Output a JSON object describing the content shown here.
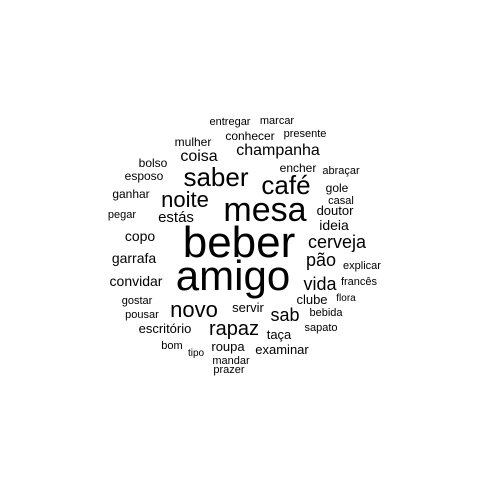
{
  "colors": {
    "background": "#ffffff",
    "text": "#000000"
  },
  "words": [
    {
      "text": "beber",
      "weight": 1.0
    },
    {
      "text": "amigo",
      "weight": 0.97
    },
    {
      "text": "mesa",
      "weight": 0.74
    },
    {
      "text": "saber",
      "weight": 0.6
    },
    {
      "text": "café",
      "weight": 0.6
    },
    {
      "text": "noite",
      "weight": 0.5
    },
    {
      "text": "novo",
      "weight": 0.5
    },
    {
      "text": "rapaz",
      "weight": 0.45
    },
    {
      "text": "vida",
      "weight": 0.4
    },
    {
      "text": "sab",
      "weight": 0.4
    },
    {
      "text": "cerveja",
      "weight": 0.36
    },
    {
      "text": "pão",
      "weight": 0.36
    },
    {
      "text": "champanha",
      "weight": 0.33
    },
    {
      "text": "coisa",
      "weight": 0.32
    },
    {
      "text": "estás",
      "weight": 0.32
    },
    {
      "text": "ideia",
      "weight": 0.3
    },
    {
      "text": "copo",
      "weight": 0.3
    },
    {
      "text": "garrafa",
      "weight": 0.3
    },
    {
      "text": "convidar",
      "weight": 0.3
    },
    {
      "text": "servir",
      "weight": 0.29
    },
    {
      "text": "clube",
      "weight": 0.27
    },
    {
      "text": "doutor",
      "weight": 0.27
    },
    {
      "text": "roupa",
      "weight": 0.27
    },
    {
      "text": "taça",
      "weight": 0.27
    },
    {
      "text": "examinar",
      "weight": 0.27
    },
    {
      "text": "escritório",
      "weight": 0.27
    },
    {
      "text": "mulher",
      "weight": 0.26
    },
    {
      "text": "conhecer",
      "weight": 0.26
    },
    {
      "text": "encher",
      "weight": 0.24
    },
    {
      "text": "gole",
      "weight": 0.24
    },
    {
      "text": "ganhar",
      "weight": 0.24
    },
    {
      "text": "esposo",
      "weight": 0.24
    },
    {
      "text": "bolso",
      "weight": 0.24
    },
    {
      "text": "entregar",
      "weight": 0.22
    },
    {
      "text": "marcar",
      "weight": 0.22
    },
    {
      "text": "presente",
      "weight": 0.22
    },
    {
      "text": "abraçar",
      "weight": 0.22
    },
    {
      "text": "casal",
      "weight": 0.22
    },
    {
      "text": "pegar",
      "weight": 0.22
    },
    {
      "text": "explicar",
      "weight": 0.22
    },
    {
      "text": "francês",
      "weight": 0.22
    },
    {
      "text": "flora",
      "weight": 0.21
    },
    {
      "text": "gostar",
      "weight": 0.21
    },
    {
      "text": "pousar",
      "weight": 0.21
    },
    {
      "text": "bebida",
      "weight": 0.21
    },
    {
      "text": "sapato",
      "weight": 0.21
    },
    {
      "text": "bom",
      "weight": 0.2
    },
    {
      "text": "tipo",
      "weight": 0.2
    },
    {
      "text": "mandar",
      "weight": 0.2
    },
    {
      "text": "prazer",
      "weight": 0.2
    }
  ]
}
